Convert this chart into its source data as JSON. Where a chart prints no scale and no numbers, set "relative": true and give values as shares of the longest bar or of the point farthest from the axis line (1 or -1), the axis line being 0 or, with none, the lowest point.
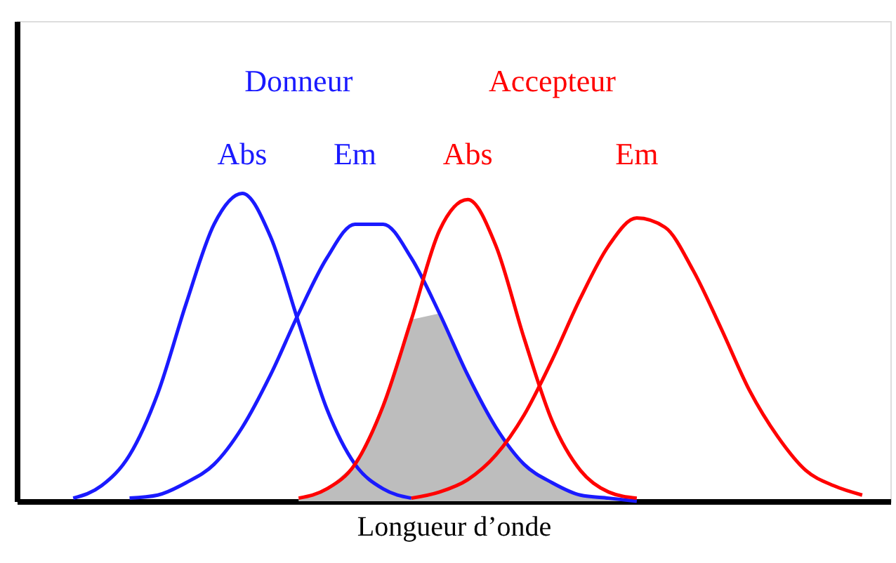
{
  "chart_data": {
    "type": "line",
    "relative": true,
    "xlabel": "Longueur d’onde",
    "annotations": [
      "Donneur",
      "Accepteur"
    ],
    "categories": [
      null,
      null,
      null,
      null,
      null,
      null,
      null,
      null,
      null,
      null,
      null,
      null,
      null,
      null,
      null,
      null,
      null,
      null,
      null,
      null,
      null,
      null,
      null,
      null,
      null,
      null,
      null,
      null,
      null,
      null,
      null,
      null
    ],
    "series": [
      {
        "name": "Abs",
        "color": "#1a1aff",
        "values": [
          null,
          null,
          0.01,
          0.05,
          0.15,
          0.35,
          0.64,
          0.9,
          1.0,
          0.86,
          0.58,
          0.3,
          0.12,
          0.04,
          0.01,
          null,
          null,
          null,
          null,
          null,
          null,
          null,
          null,
          null,
          null,
          null,
          null,
          null,
          null,
          null,
          null,
          null
        ]
      },
      {
        "name": "Em",
        "color": "#1a1aff",
        "values": [
          null,
          null,
          null,
          null,
          0.01,
          0.02,
          0.06,
          0.12,
          0.24,
          0.41,
          0.61,
          0.79,
          0.9,
          0.9,
          0.79,
          0.61,
          0.41,
          0.24,
          0.12,
          0.06,
          0.02,
          0.01,
          0.0,
          null,
          null,
          null,
          null,
          null,
          null,
          null,
          null,
          null
        ]
      },
      {
        "name": "Abs",
        "color": "#ff0000",
        "values": [
          null,
          null,
          null,
          null,
          null,
          null,
          null,
          null,
          null,
          null,
          0.01,
          0.04,
          0.12,
          0.31,
          0.59,
          0.88,
          0.98,
          0.83,
          0.53,
          0.26,
          0.1,
          0.03,
          0.01,
          null,
          null,
          null,
          null,
          null,
          null,
          null,
          null,
          null
        ]
      },
      {
        "name": "Em",
        "color": "#ff0000",
        "values": [
          null,
          null,
          null,
          null,
          null,
          null,
          null,
          null,
          null,
          null,
          null,
          null,
          null,
          null,
          0.01,
          0.03,
          0.07,
          0.15,
          0.28,
          0.46,
          0.66,
          0.83,
          0.92,
          0.89,
          0.75,
          0.56,
          0.36,
          0.21,
          0.1,
          0.05,
          0.02,
          null
        ]
      },
      {
        "type": "area",
        "color": "#bdbdbd",
        "values": [
          null,
          null,
          null,
          null,
          null,
          null,
          null,
          null,
          null,
          null,
          0.01,
          0.04,
          0.12,
          0.31,
          0.59,
          0.61,
          0.41,
          0.24,
          0.12,
          0.06,
          0.02,
          0.01,
          0.0,
          null,
          null,
          null,
          null,
          null,
          null,
          null,
          null,
          null
        ]
      }
    ]
  }
}
